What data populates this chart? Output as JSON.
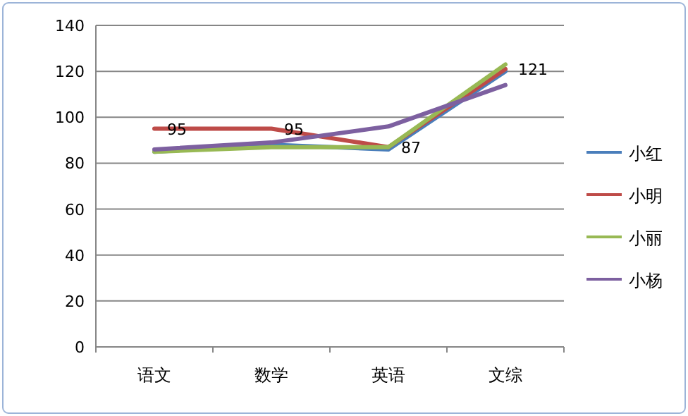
{
  "chart_data": {
    "type": "line",
    "categories": [
      "语文",
      "数学",
      "英语",
      "文综"
    ],
    "series": [
      {
        "name": "小红",
        "color": "#4a7ebb",
        "values": [
          85,
          88,
          86,
          120
        ]
      },
      {
        "name": "小明",
        "color": "#be4b48",
        "values": [
          95,
          95,
          87,
          121
        ],
        "value_labels": [
          "95",
          "95",
          "87",
          "121"
        ]
      },
      {
        "name": "小丽",
        "color": "#98b954",
        "values": [
          85,
          87,
          87,
          123
        ]
      },
      {
        "name": "小杨",
        "color": "#7d60a0",
        "values": [
          86,
          89,
          96,
          114
        ]
      }
    ],
    "ylim": [
      0,
      140
    ],
    "yticks": [
      0,
      20,
      40,
      60,
      80,
      100,
      120,
      140
    ],
    "grid": "y",
    "legend": "right",
    "marker": "none",
    "line_style": "solid"
  }
}
